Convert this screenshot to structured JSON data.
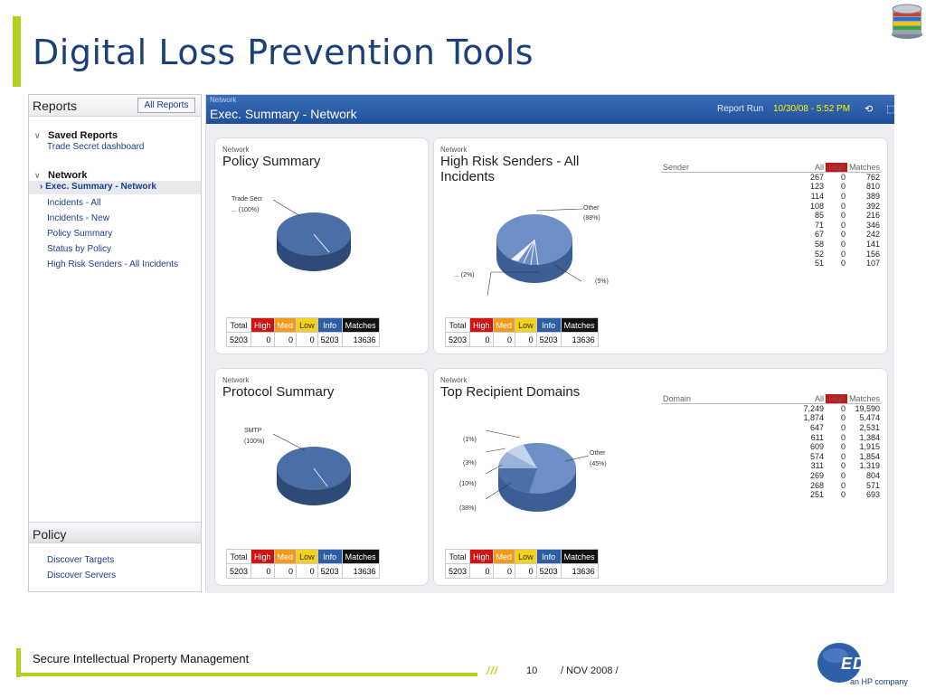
{
  "slide": {
    "title": "Digital Loss Prevention Tools"
  },
  "left_panel": {
    "reports_title": "Reports",
    "all_reports": "All Reports",
    "saved_reports": {
      "heading": "Saved Reports",
      "items": [
        "Trade Secret dashboard"
      ]
    },
    "network": {
      "heading": "Network",
      "items": [
        "Exec. Summary - Network",
        "Incidents - All",
        "Incidents - New",
        "Policy Summary",
        "Status by Policy",
        "High Risk Senders - All Incidents"
      ]
    },
    "policy_title": "Policy",
    "policy_items": [
      "Discover Targets",
      "Discover Servers"
    ]
  },
  "header": {
    "crumb": "Network",
    "title": "Exec. Summary - Network",
    "report_run_label": "Report Run",
    "report_run_value": "10/30/08 - 5:52 PM"
  },
  "severity_headers": [
    "Total",
    "High",
    "Med",
    "Low",
    "Info",
    "Matches"
  ],
  "severity_values": [
    "5203",
    "0",
    "0",
    "0",
    "5203",
    "13636"
  ],
  "colors": {
    "high": "#d01414",
    "med": "#f39b1a",
    "low": "#f4d21c",
    "info": "#2c5ea8",
    "accent": "#b5cf1e",
    "title": "#1a3f7a"
  },
  "cards": {
    "policy": {
      "crumb": "Network",
      "title": "Policy Summary",
      "labels": [
        "Trade Secr",
        "... (100%)"
      ]
    },
    "senders": {
      "crumb": "Network",
      "title": "High Risk Senders - All",
      "title2": "Incidents",
      "labels": [
        "Other",
        "(88%)",
        "... (2%)",
        "(5%)"
      ]
    },
    "protocol": {
      "crumb": "Network",
      "title": "Protocol Summary",
      "labels": [
        "SMTP",
        "(100%)"
      ]
    },
    "domains": {
      "crumb": "Network",
      "title": "Top Recipient Domains",
      "labels": [
        "(1%)",
        "(3%)",
        "(10%)",
        "(38%)",
        "Other",
        "(45%)"
      ]
    }
  },
  "senders_table": {
    "headers": [
      "Sender",
      "All",
      "High",
      "Matches"
    ],
    "rows": [
      [
        "267",
        "0",
        "762"
      ],
      [
        "123",
        "0",
        "810"
      ],
      [
        "114",
        "0",
        "389"
      ],
      [
        "108",
        "0",
        "392"
      ],
      [
        "85",
        "0",
        "216"
      ],
      [
        "71",
        "0",
        "346"
      ],
      [
        "67",
        "0",
        "242"
      ],
      [
        "58",
        "0",
        "141"
      ],
      [
        "52",
        "0",
        "156"
      ],
      [
        "51",
        "0",
        "107"
      ]
    ]
  },
  "domains_table": {
    "headers": [
      "Domain",
      "All",
      "High",
      "Matches"
    ],
    "rows": [
      [
        "7,249",
        "0",
        "19,590"
      ],
      [
        "1,874",
        "0",
        "5,474"
      ],
      [
        "647",
        "0",
        "2,531"
      ],
      [
        "611",
        "0",
        "1,384"
      ],
      [
        "609",
        "0",
        "1,915"
      ],
      [
        "574",
        "0",
        "1,854"
      ],
      [
        "311",
        "0",
        "1,319"
      ],
      [
        "269",
        "0",
        "804"
      ],
      [
        "268",
        "0",
        "571"
      ],
      [
        "251",
        "0",
        "693"
      ]
    ]
  },
  "footer": {
    "text": "Secure Intellectual Property Management",
    "slashes": "///",
    "page": "10",
    "date": "/  NOV 2008  /",
    "logo_text": "EDS",
    "logo_sub": "an HP company"
  }
}
